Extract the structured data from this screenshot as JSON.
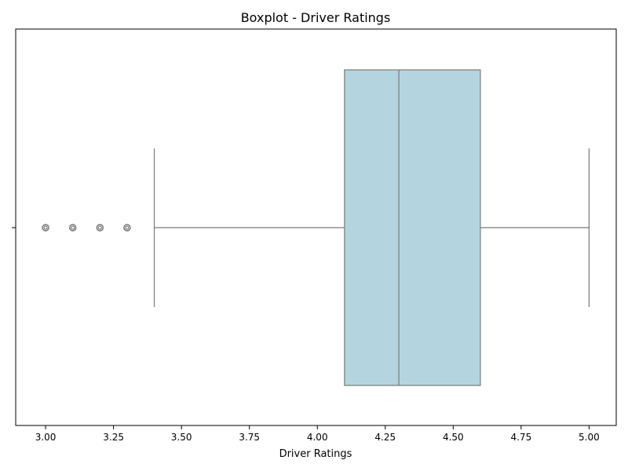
{
  "chart_data": {
    "type": "boxplot",
    "orientation": "horizontal",
    "title": "Boxplot - Driver Ratings",
    "xlabel": "Driver Ratings",
    "ylabel": "",
    "xlim": [
      2.89,
      5.1
    ],
    "xticks": [
      3.0,
      3.25,
      3.5,
      3.75,
      4.0,
      4.25,
      4.5,
      4.75,
      5.0
    ],
    "xtick_labels": [
      "3.00",
      "3.25",
      "3.50",
      "3.75",
      "4.00",
      "4.25",
      "4.50",
      "4.75",
      "5.00"
    ],
    "grid": false,
    "box": {
      "whisker_low": 3.4,
      "q1": 4.1,
      "median": 4.3,
      "q3": 4.6,
      "whisker_high": 5.0,
      "outliers": [
        3.0,
        3.1,
        3.2,
        3.3
      ]
    },
    "colors": {
      "box_fill": "#b4d5e0",
      "line": "#7a7a7a",
      "axes": "#000000"
    }
  }
}
